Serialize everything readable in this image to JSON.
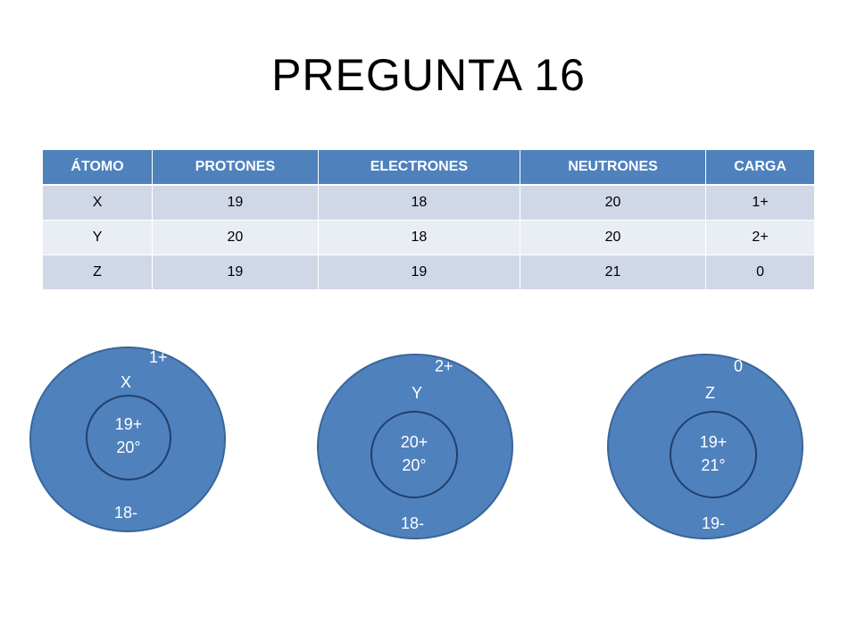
{
  "title": "PREGUNTA 16",
  "table": {
    "headers": [
      "ÁTOMO",
      "PROTONES",
      "ELECTRONES",
      "NEUTRONES",
      "CARGA"
    ],
    "rows": [
      [
        "X",
        "19",
        "18",
        "20",
        "1+"
      ],
      [
        "Y",
        "20",
        "18",
        "20",
        "2+"
      ],
      [
        "Z",
        "19",
        "19",
        "21",
        "0"
      ]
    ]
  },
  "atoms": [
    {
      "charge": "1+",
      "symbol": "X",
      "protons": "19+",
      "neutrons": "20°",
      "electrons": "18-"
    },
    {
      "charge": "2+",
      "symbol": "Y",
      "protons": "20+",
      "neutrons": "20°",
      "electrons": "18-"
    },
    {
      "charge": "0",
      "symbol": "Z",
      "protons": "19+",
      "neutrons": "21°",
      "electrons": "19-"
    }
  ],
  "colors": {
    "header": "#4f81bd",
    "row_dark": "#d0d8e8",
    "row_light": "#e9edf4",
    "atom_fill": "#4f81bd",
    "nucleus_ring": "#20406b"
  }
}
